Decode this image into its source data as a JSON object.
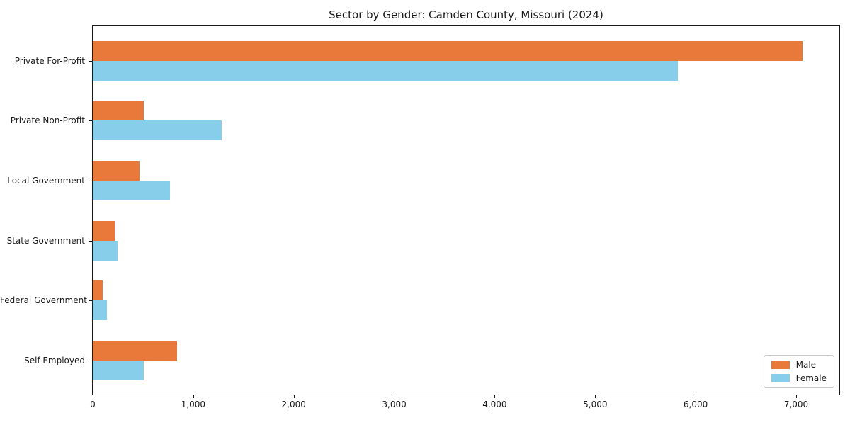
{
  "title": "Sector by Gender: Camden County, Missouri (2024)",
  "chart_data": {
    "type": "bar",
    "orientation": "horizontal",
    "title": "Sector by Gender: Camden County, Missouri (2024)",
    "categories": [
      "Private For-Profit",
      "Private Non-Profit",
      "Local Government",
      "State Government",
      "Federal Government",
      "Self-Employed"
    ],
    "series": [
      {
        "name": "Male",
        "color": "#E8793B",
        "values": [
          7060,
          510,
          465,
          220,
          100,
          840
        ]
      },
      {
        "name": "Female",
        "color": "#87CEEB",
        "values": [
          5820,
          1280,
          765,
          245,
          140,
          510
        ]
      }
    ],
    "xlabel": "",
    "ylabel": "",
    "xlim": [
      0,
      7430
    ],
    "xticks": [
      0,
      1000,
      2000,
      3000,
      4000,
      5000,
      6000,
      7000
    ],
    "xtick_labels": [
      "0",
      "1,000",
      "2,000",
      "3,000",
      "4,000",
      "5,000",
      "6,000",
      "7,000"
    ],
    "grid": false,
    "legend": {
      "position": "lower right",
      "entries": [
        "Male",
        "Female"
      ]
    }
  }
}
